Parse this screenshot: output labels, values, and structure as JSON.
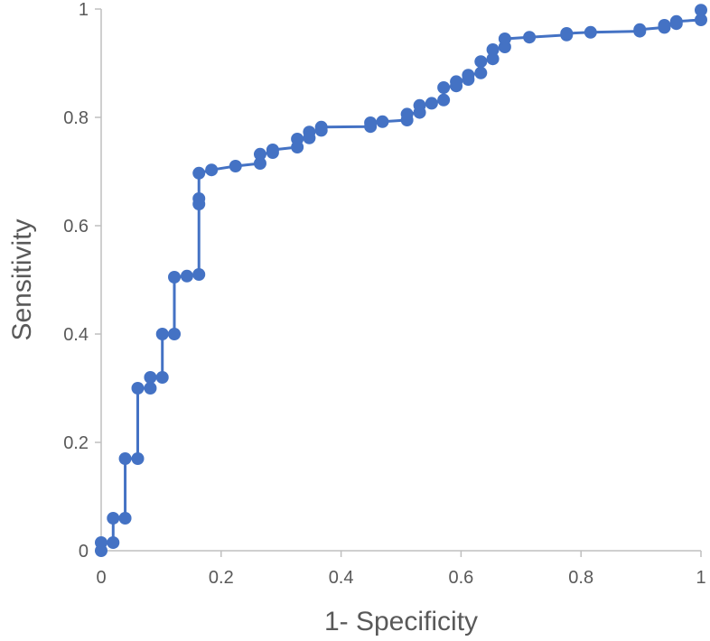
{
  "chart_data": {
    "type": "line",
    "title": "",
    "xlabel": "1- Specificity",
    "ylabel": "Sensitivity",
    "xlim": [
      0,
      1
    ],
    "ylim": [
      0,
      1
    ],
    "x_ticks": [
      0,
      0.2,
      0.4,
      0.6,
      0.8,
      1
    ],
    "y_ticks": [
      0,
      0.2,
      0.4,
      0.6,
      0.8,
      1
    ],
    "x_tick_labels": [
      "0",
      "0.2",
      "0.4",
      "0.6",
      "0.8",
      "1"
    ],
    "y_tick_labels": [
      "0",
      "0.2",
      "0.4",
      "0.6",
      "0.8",
      "1"
    ],
    "grid": false,
    "legend": "none",
    "series": [
      {
        "color": "#4472C4",
        "marker": "circle",
        "x": [
          0,
          0,
          0.02,
          0.02,
          0.04,
          0.04,
          0.061,
          0.061,
          0.082,
          0.082,
          0.102,
          0.102,
          0.122,
          0.122,
          0.143,
          0.163,
          0.163,
          0.163,
          0.163,
          0.184,
          0.224,
          0.265,
          0.265,
          0.286,
          0.286,
          0.327,
          0.327,
          0.347,
          0.347,
          0.367,
          0.367,
          0.449,
          0.449,
          0.469,
          0.51,
          0.51,
          0.531,
          0.531,
          0.551,
          0.571,
          0.571,
          0.592,
          0.592,
          0.612,
          0.612,
          0.633,
          0.633,
          0.653,
          0.653,
          0.673,
          0.673,
          0.714,
          0.776,
          0.776,
          0.816,
          0.898,
          0.898,
          0.939,
          0.939,
          0.959,
          0.959,
          1,
          1
        ],
        "values": [
          0,
          0.015,
          0.015,
          0.06,
          0.06,
          0.17,
          0.17,
          0.3,
          0.3,
          0.32,
          0.32,
          0.4,
          0.4,
          0.505,
          0.507,
          0.51,
          0.64,
          0.65,
          0.697,
          0.703,
          0.71,
          0.715,
          0.732,
          0.735,
          0.74,
          0.745,
          0.76,
          0.762,
          0.773,
          0.776,
          0.782,
          0.783,
          0.79,
          0.792,
          0.795,
          0.806,
          0.809,
          0.822,
          0.826,
          0.832,
          0.855,
          0.858,
          0.866,
          0.87,
          0.878,
          0.882,
          0.903,
          0.908,
          0.925,
          0.93,
          0.945,
          0.948,
          0.952,
          0.955,
          0.957,
          0.959,
          0.962,
          0.966,
          0.97,
          0.973,
          0.977,
          0.98,
          0.998
        ]
      }
    ]
  }
}
